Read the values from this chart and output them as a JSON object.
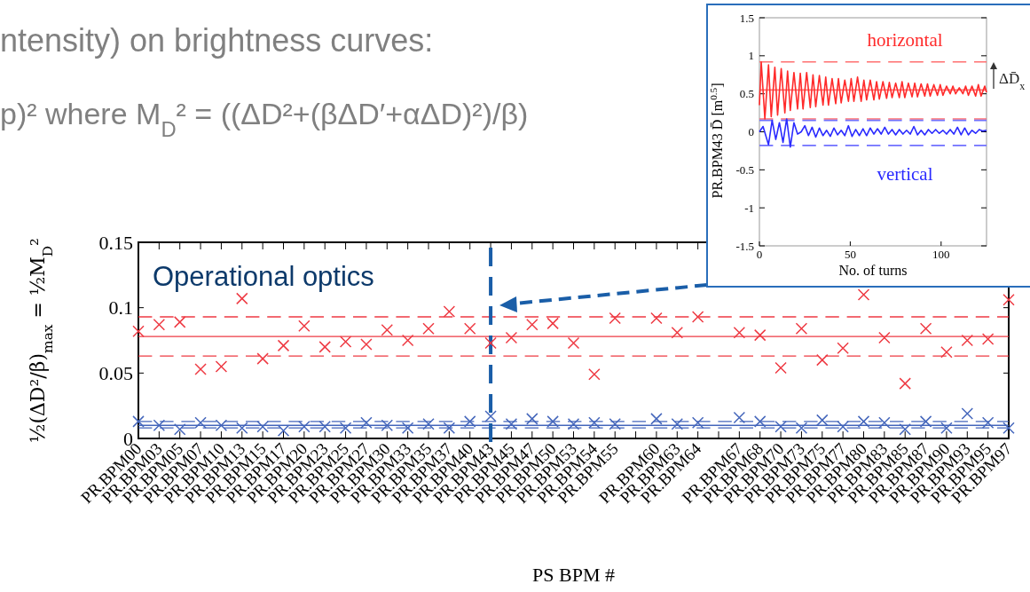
{
  "chart_data": [
    {
      "type": "scatter",
      "xlabel": "PS BPM #",
      "ylabel": "½(ΔD²/β)$_{max}$ = ½M$_{D}$²",
      "marker": "cross",
      "grid": false,
      "ylim": [
        0,
        0.15
      ],
      "yticks": [
        0,
        0.05,
        0.1,
        0.15
      ],
      "categories": [
        "PR.BPM00",
        "PR.BPM03",
        "PR.BPM05",
        "PR.BPM07",
        "PR.BPM10",
        "PR.BPM13",
        "PR.BPM15",
        "PR.BPM17",
        "PR.BPM20",
        "PR.BPM23",
        "PR.BPM25",
        "PR.BPM27",
        "PR.BPM30",
        "PR.BPM33",
        "PR.BPM35",
        "PR.BPM37",
        "PR.BPM40",
        "PR.BPM43",
        "PR.BPM45",
        "PR.BPM47",
        "PR.BPM50",
        "PR.BPM53",
        "PR.BPM54",
        "PR.BPM55",
        null,
        "PR.BPM60",
        "PR.BPM63",
        "PR.BPM64",
        null,
        "PR.BPM67",
        "PR.BPM68",
        "PR.BPM70",
        "PR.BPM73",
        "PR.BPM75",
        "PR.BPM77",
        "PR.BPM80",
        "PR.BPM83",
        "PR.BPM85",
        "PR.BPM87",
        "PR.BPM90",
        "PR.BPM93",
        "PR.BPM95",
        "PR.BPM97"
      ],
      "series": [
        {
          "color": "#ee3a43",
          "values": [
            0.082,
            0.087,
            0.089,
            0.053,
            0.055,
            0.107,
            0.061,
            0.071,
            0.086,
            0.07,
            0.074,
            0.072,
            0.083,
            0.075,
            0.084,
            0.097,
            0.084,
            0.073,
            0.077,
            0.087,
            0.088,
            0.073,
            0.049,
            0.092,
            null,
            0.092,
            0.081,
            0.093,
            null,
            0.081,
            0.079,
            0.054,
            0.084,
            0.06,
            0.069,
            0.11,
            0.077,
            0.042,
            0.084,
            0.066,
            0.075,
            0.076,
            0.106
          ]
        },
        {
          "color": "#4466bb",
          "values": [
            0.013,
            0.01,
            0.007,
            0.012,
            0.01,
            0.008,
            0.009,
            0.006,
            0.009,
            0.009,
            0.008,
            0.012,
            0.01,
            0.008,
            0.011,
            0.008,
            0.013,
            0.017,
            0.011,
            0.015,
            0.013,
            0.011,
            0.012,
            0.011,
            null,
            0.015,
            0.011,
            0.012,
            null,
            0.016,
            0.013,
            0.009,
            0.008,
            0.014,
            0.009,
            0.013,
            0.012,
            0.007,
            0.013,
            0.008,
            0.019,
            0.012,
            0.008
          ]
        }
      ],
      "ref_lines": [
        {
          "axis": "y",
          "value": 0.078,
          "color": "#ee3a43",
          "line_style": "solid"
        },
        {
          "axis": "y",
          "value": 0.093,
          "color": "#ee3a43",
          "line_style": "dashed"
        },
        {
          "axis": "y",
          "value": 0.063,
          "color": "#ee3a43",
          "line_style": "dashed"
        },
        {
          "axis": "y",
          "value": 0.01,
          "color": "#4466bb",
          "line_style": "solid"
        },
        {
          "axis": "y",
          "value": 0.013,
          "color": "#4466bb",
          "line_style": "dashed"
        },
        {
          "axis": "y",
          "value": 0.008,
          "color": "#4466bb",
          "line_style": "dashed"
        },
        {
          "axis": "x",
          "value": "PR.BPM43",
          "color": "#1a5ea8",
          "line_style": "dashed"
        }
      ],
      "annotations": [
        "ntensity) on brightness curves:",
        "p)² where M$_{D}$² = ((ΔD²+(βΔD′+αΔD)²)/β)",
        "Operational optics"
      ]
    },
    {
      "type": "line",
      "xlabel": "No. of turns",
      "ylabel": "PR.BPM43 D̄ [m$^{0.5}$]",
      "grid": false,
      "xlim": [
        0,
        125
      ],
      "xticks": [
        0,
        50,
        100
      ],
      "ylim": [
        -1.5,
        1.5
      ],
      "yticks": [
        -1.5,
        -1,
        -0.5,
        0,
        0.5,
        1,
        1.5
      ],
      "line_style": "solid",
      "series": [
        {
          "name": "horizontal",
          "color": "#ff2a2a",
          "x": [
            0,
            1,
            3,
            5,
            6.5,
            8.5,
            10,
            12,
            14,
            15.5,
            17,
            19,
            21,
            22.5,
            24,
            26,
            28,
            29.5,
            31,
            33,
            35,
            36.5,
            38,
            40,
            42,
            43.5,
            45,
            47,
            49,
            50.5,
            52,
            54,
            56,
            57.5,
            59,
            61,
            63,
            64.5,
            66,
            68,
            70,
            71.5,
            73,
            75,
            77,
            78.5,
            80,
            82,
            84,
            85.5,
            87,
            89,
            91,
            92.5,
            94,
            96,
            98,
            99.5,
            101,
            103,
            105,
            106.5,
            108,
            110,
            112,
            113.5,
            115,
            117,
            119,
            120.5,
            122,
            124,
            125
          ],
          "values": [
            0.35,
            0.92,
            0.17,
            0.88,
            0.2,
            0.85,
            0.22,
            0.83,
            0.25,
            0.8,
            0.28,
            0.78,
            0.3,
            0.77,
            0.3,
            0.78,
            0.32,
            0.75,
            0.33,
            0.74,
            0.35,
            0.72,
            0.35,
            0.7,
            0.37,
            0.7,
            0.38,
            0.68,
            0.4,
            0.7,
            0.4,
            0.72,
            0.4,
            0.68,
            0.42,
            0.68,
            0.42,
            0.66,
            0.43,
            0.66,
            0.44,
            0.65,
            0.45,
            0.64,
            0.45,
            0.66,
            0.45,
            0.64,
            0.46,
            0.64,
            0.46,
            0.63,
            0.47,
            0.63,
            0.47,
            0.62,
            0.48,
            0.62,
            0.48,
            0.6,
            0.5,
            0.6,
            0.5,
            0.58,
            0.5,
            0.6,
            0.48,
            0.6,
            0.47,
            0.62,
            0.47,
            0.6,
            0.52
          ]
        },
        {
          "name": "vertical",
          "color": "#2a2aff",
          "x": [
            0,
            2,
            3.5,
            5,
            7,
            9,
            11,
            13,
            15,
            17,
            19,
            21,
            23,
            25,
            27,
            29,
            31,
            33,
            35,
            37,
            39,
            41,
            43,
            45,
            47,
            49,
            51,
            53,
            55,
            57,
            59,
            61,
            63,
            65,
            67,
            69,
            71,
            73,
            75,
            77,
            79,
            81,
            83,
            85,
            87,
            89,
            91,
            93,
            95,
            97,
            99,
            101,
            103,
            105,
            107,
            109,
            111,
            113,
            115,
            117,
            119,
            121,
            123,
            125
          ],
          "values": [
            0.0,
            0.07,
            -0.05,
            -0.17,
            0.15,
            -0.1,
            0.12,
            -0.14,
            0.17,
            -0.2,
            0.12,
            -0.03,
            0.0,
            0.08,
            -0.05,
            0.06,
            -0.07,
            0.05,
            -0.05,
            0.02,
            -0.06,
            0.05,
            -0.04,
            0.02,
            -0.05,
            0.08,
            -0.06,
            0.03,
            -0.05,
            0.04,
            -0.05,
            0.05,
            -0.03,
            0.04,
            -0.03,
            0.06,
            -0.03,
            0.03,
            -0.04,
            0.03,
            -0.03,
            0.02,
            -0.03,
            0.07,
            -0.04,
            0.02,
            -0.04,
            0.03,
            -0.02,
            0.03,
            -0.02,
            0.02,
            -0.03,
            0.03,
            -0.03,
            0.06,
            -0.04,
            0.05,
            -0.04,
            0.02,
            -0.02,
            0.03,
            0.01,
            0.02
          ]
        }
      ],
      "ref_lines": [
        {
          "axis": "y",
          "value": 0.92,
          "color": "#ff7070",
          "line_style": "dashed"
        },
        {
          "axis": "y",
          "value": 0.55,
          "color": "#ff7070",
          "line_style": "solid"
        },
        {
          "axis": "y",
          "value": 0.17,
          "color": "#ff7070",
          "line_style": "dashed"
        },
        {
          "axis": "y",
          "value": 0.15,
          "color": "#7070ff",
          "line_style": "dashed"
        },
        {
          "axis": "y",
          "value": -0.18,
          "color": "#7070ff",
          "line_style": "dashed"
        }
      ],
      "annotations": [
        "ΔD̄$_{x}$"
      ]
    }
  ]
}
